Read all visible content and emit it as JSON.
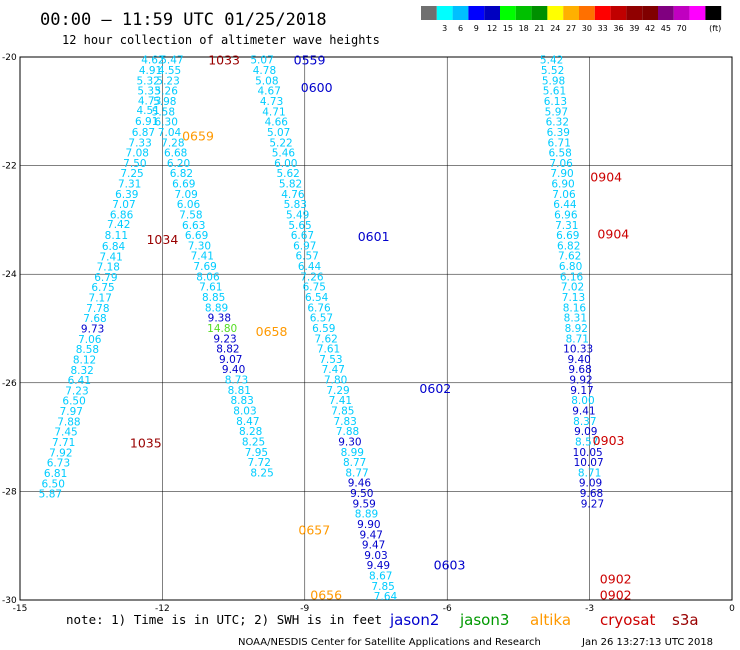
{
  "header": {
    "title": "00:00 – 11:59 UTC 01/25/2018",
    "subtitle": "12 hour collection of altimeter wave heights"
  },
  "colorbar": {
    "unit": "(ft)",
    "colors": [
      "#707070",
      "#00ffff",
      "#00c0ff",
      "#0000ff",
      "#0000c0",
      "#00ff00",
      "#00c000",
      "#009000",
      "#ffff00",
      "#ffb000",
      "#ff7000",
      "#ff0000",
      "#c00000",
      "#900000",
      "#800000",
      "#800080",
      "#c000c0",
      "#ff00ff",
      "#000000"
    ],
    "labels": [
      "3",
      "6",
      "9",
      "12",
      "15",
      "18",
      "21",
      "24",
      "27",
      "30",
      "33",
      "36",
      "39",
      "42",
      "45",
      "70"
    ]
  },
  "legend": {
    "note": "note:  1) Time is in UTC;  2) SWH is in feet",
    "satellites": [
      {
        "name": "jason2",
        "color": "#0000cc"
      },
      {
        "name": "jason3",
        "color": "#009900"
      },
      {
        "name": "altika",
        "color": "#ff9900"
      },
      {
        "name": "cryosat",
        "color": "#cc0000"
      },
      {
        "name": "s3a",
        "color": "#990000"
      }
    ]
  },
  "footer": {
    "credit": "NOAA/NESDIS Center for Satellite Applications and Research",
    "timestamp": "Jan 26 13:27:13 UTC 2018"
  },
  "chart_data": {
    "type": "scatter",
    "xlim": [
      -15,
      0
    ],
    "ylim": [
      -30,
      -20
    ],
    "x_ticks": [
      -15,
      -12,
      -9,
      -6,
      -3,
      0
    ],
    "y_ticks": [
      -20,
      -22,
      -24,
      -26,
      -28,
      -30
    ],
    "grid": true,
    "value_colors": {
      "cyan": "#00ccff",
      "navy": "#0000cc",
      "green": "#55dd22"
    },
    "tracks": [
      {
        "labels": [
          "4.62",
          "4.91",
          "5.32",
          "5.33",
          "4.73",
          "4.51",
          "6.91",
          "6.87",
          "7.33",
          "7.08",
          "7.50",
          "7.25",
          "7.31",
          "6.39",
          "7.07",
          "6.86",
          "7.42",
          "8.11",
          "6.84",
          "7.41",
          "7.18",
          "6.79",
          "6.75",
          "7.17",
          "7.78",
          "7.68",
          "9.73",
          "7.06",
          "8.58",
          "8.12",
          "8.32",
          "6.41",
          "7.23",
          "6.50",
          "7.97",
          "7.88",
          "7.45",
          "7.71",
          "7.92",
          "6.73",
          "6.81",
          "6.50",
          "5.87"
        ],
        "x": [
          -12.2,
          -12.25,
          -12.3,
          -12.28,
          -12.27,
          -12.3,
          -12.33,
          -12.4,
          -12.47,
          -12.53,
          -12.58,
          -12.64,
          -12.69,
          -12.75,
          -12.81,
          -12.86,
          -12.92,
          -12.97,
          -13.03,
          -13.08,
          -13.14,
          -13.19,
          -13.25,
          -13.31,
          -13.36,
          -13.42,
          -13.47,
          -13.53,
          -13.58,
          -13.64,
          -13.69,
          -13.75,
          -13.8,
          -13.86,
          -13.92,
          -13.97,
          -14.03,
          -14.08,
          -14.14,
          -14.19,
          -14.25,
          -14.3,
          -14.36
        ],
        "y": [
          -20.05,
          -20.24,
          -20.43,
          -20.62,
          -20.8,
          -20.98,
          -21.18,
          -21.38,
          -21.57,
          -21.76,
          -21.95,
          -22.14,
          -22.33,
          -22.52,
          -22.71,
          -22.9,
          -23.08,
          -23.28,
          -23.48,
          -23.67,
          -23.86,
          -24.05,
          -24.24,
          -24.43,
          -24.62,
          -24.81,
          -25.0,
          -25.19,
          -25.38,
          -25.57,
          -25.76,
          -25.95,
          -26.14,
          -26.33,
          -26.52,
          -26.71,
          -26.9,
          -27.09,
          -27.28,
          -27.47,
          -27.66,
          -27.85,
          -28.04
        ],
        "colors": [
          "cyan",
          "cyan",
          "cyan",
          "cyan",
          "cyan",
          "cyan",
          "cyan",
          "cyan",
          "cyan",
          "cyan",
          "cyan",
          "cyan",
          "cyan",
          "cyan",
          "cyan",
          "cyan",
          "cyan",
          "cyan",
          "cyan",
          "cyan",
          "cyan",
          "cyan",
          "cyan",
          "cyan",
          "cyan",
          "cyan",
          "navy",
          "cyan",
          "cyan",
          "cyan",
          "cyan",
          "cyan",
          "cyan",
          "cyan",
          "cyan",
          "cyan",
          "cyan",
          "cyan",
          "cyan",
          "cyan",
          "cyan",
          "cyan",
          "cyan"
        ]
      },
      {
        "labels": [
          "5.47",
          "4.55",
          "5.23",
          "5.26",
          "5.98",
          "5.58",
          "6.30",
          "7.04",
          "7.28",
          "6.68",
          "6.20",
          "6.82",
          "6.69",
          "7.09",
          "6.06",
          "7.58",
          "6.63",
          "6.69",
          "7.30",
          "7.41",
          "7.69",
          "8.06",
          "7.61",
          "8.85",
          "8.89",
          "9.38",
          "14.80",
          "9.23",
          "8.82",
          "9.07",
          "9.40",
          "8.73",
          "8.81",
          "8.83",
          "8.03",
          "8.47",
          "8.28",
          "8.25",
          "7.95",
          "7.72",
          "8.25"
        ],
        "x": [
          -11.8,
          -11.85,
          -11.88,
          -11.92,
          -11.95,
          -11.98,
          -11.92,
          -11.85,
          -11.78,
          -11.72,
          -11.66,
          -11.6,
          -11.55,
          -11.5,
          -11.45,
          -11.4,
          -11.34,
          -11.28,
          -11.22,
          -11.16,
          -11.1,
          -11.04,
          -10.98,
          -10.92,
          -10.86,
          -10.8,
          -10.74,
          -10.68,
          -10.62,
          -10.56,
          -10.5,
          -10.44,
          -10.38,
          -10.32,
          -10.26,
          -10.2,
          -10.14,
          -10.08,
          -10.02,
          -9.96,
          -9.9
        ],
        "y": [
          -20.05,
          -20.24,
          -20.43,
          -20.62,
          -20.81,
          -21.0,
          -21.19,
          -21.38,
          -21.57,
          -21.76,
          -21.95,
          -22.14,
          -22.33,
          -22.52,
          -22.71,
          -22.9,
          -23.09,
          -23.28,
          -23.47,
          -23.66,
          -23.85,
          -24.04,
          -24.23,
          -24.42,
          -24.61,
          -24.8,
          -24.99,
          -25.18,
          -25.37,
          -25.56,
          -25.75,
          -25.94,
          -26.13,
          -26.32,
          -26.51,
          -26.7,
          -26.89,
          -27.08,
          -27.27,
          -27.46,
          -27.65
        ],
        "colors": [
          "cyan",
          "cyan",
          "cyan",
          "cyan",
          "cyan",
          "cyan",
          "cyan",
          "cyan",
          "cyan",
          "cyan",
          "cyan",
          "cyan",
          "cyan",
          "cyan",
          "cyan",
          "cyan",
          "cyan",
          "cyan",
          "cyan",
          "cyan",
          "cyan",
          "cyan",
          "cyan",
          "cyan",
          "cyan",
          "navy",
          "green",
          "navy",
          "navy",
          "navy",
          "navy",
          "cyan",
          "cyan",
          "cyan",
          "cyan",
          "cyan",
          "cyan",
          "cyan",
          "cyan",
          "cyan",
          "cyan"
        ]
      },
      {
        "labels": [
          "5.07",
          "4.78",
          "5.08",
          "4.67",
          "4.73",
          "4.71",
          "4.66",
          "5.07",
          "5.22",
          "5.46",
          "6.00",
          "5.62",
          "5.82",
          "4.76",
          "5.83",
          "5.49",
          "5.65",
          "6.67",
          "6.97",
          "6.57",
          "6.44",
          "7.26",
          "6.75",
          "6.54",
          "6.76",
          "6.57",
          "6.59",
          "7.62",
          "7.61",
          "7.53",
          "7.47",
          "7.80",
          "7.29",
          "7.41",
          "7.85",
          "7.83",
          "7.88",
          "9.30",
          "8.99",
          "8.77",
          "8.77",
          "9.46",
          "9.50",
          "9.59",
          "8.89",
          "9.90",
          "9.47",
          "9.47",
          "9.03",
          "9.49",
          "8.67",
          "7.85",
          "7.64"
        ],
        "x": [
          -9.9,
          -9.85,
          -9.8,
          -9.75,
          -9.7,
          -9.65,
          -9.6,
          -9.55,
          -9.5,
          -9.45,
          -9.4,
          -9.35,
          -9.3,
          -9.25,
          -9.2,
          -9.15,
          -9.1,
          -9.05,
          -9.0,
          -8.95,
          -8.9,
          -8.85,
          -8.8,
          -8.75,
          -8.7,
          -8.65,
          -8.6,
          -8.55,
          -8.5,
          -8.45,
          -8.4,
          -8.35,
          -8.3,
          -8.25,
          -8.2,
          -8.15,
          -8.1,
          -8.05,
          -8.0,
          -7.95,
          -7.9,
          -7.85,
          -7.8,
          -7.75,
          -7.7,
          -7.65,
          -7.6,
          -7.55,
          -7.5,
          -7.45,
          -7.4,
          -7.35,
          -7.3
        ],
        "y": [
          -20.05,
          -20.24,
          -20.43,
          -20.62,
          -20.81,
          -21.0,
          -21.19,
          -21.38,
          -21.57,
          -21.76,
          -21.95,
          -22.14,
          -22.33,
          -22.52,
          -22.71,
          -22.9,
          -23.09,
          -23.28,
          -23.47,
          -23.66,
          -23.85,
          -24.04,
          -24.23,
          -24.42,
          -24.61,
          -24.8,
          -24.99,
          -25.18,
          -25.37,
          -25.56,
          -25.75,
          -25.94,
          -26.13,
          -26.32,
          -26.51,
          -26.7,
          -26.89,
          -27.08,
          -27.27,
          -27.46,
          -27.65,
          -27.84,
          -28.03,
          -28.22,
          -28.41,
          -28.6,
          -28.79,
          -28.98,
          -29.17,
          -29.36,
          -29.55,
          -29.74,
          -29.93
        ],
        "colors": [
          "cyan",
          "cyan",
          "cyan",
          "cyan",
          "cyan",
          "cyan",
          "cyan",
          "cyan",
          "cyan",
          "cyan",
          "cyan",
          "cyan",
          "cyan",
          "cyan",
          "cyan",
          "cyan",
          "cyan",
          "cyan",
          "cyan",
          "cyan",
          "cyan",
          "cyan",
          "cyan",
          "cyan",
          "cyan",
          "cyan",
          "cyan",
          "cyan",
          "cyan",
          "cyan",
          "cyan",
          "cyan",
          "cyan",
          "cyan",
          "cyan",
          "cyan",
          "cyan",
          "navy",
          "cyan",
          "cyan",
          "cyan",
          "navy",
          "navy",
          "navy",
          "cyan",
          "navy",
          "navy",
          "navy",
          "navy",
          "navy",
          "cyan",
          "cyan",
          "cyan"
        ]
      },
      {
        "labels": [
          "5.42",
          "5.52",
          "5.98",
          "5.61",
          "6.13",
          "5.97",
          "6.32",
          "6.39",
          "6.71",
          "6.58",
          "7.06",
          "7.90",
          "6.90",
          "7.06",
          "6.44",
          "6.96",
          "7.31",
          "6.69",
          "6.82",
          "7.62",
          "6.80",
          "6.16",
          "7.02",
          "7.13",
          "8.16",
          "8.31",
          "8.92",
          "8.71",
          "10.33",
          "9.40",
          "9.68",
          "9.92",
          "9.17",
          "8.00",
          "9.41",
          "8.37",
          "9.09",
          "8.57",
          "10.05",
          "10.07",
          "8.71",
          "9.09",
          "9.68",
          "9.27"
        ],
        "x": [
          -3.8,
          -3.78,
          -3.76,
          -3.74,
          -3.72,
          -3.7,
          -3.68,
          -3.66,
          -3.64,
          -3.62,
          -3.6,
          -3.58,
          -3.56,
          -3.54,
          -3.52,
          -3.5,
          -3.48,
          -3.46,
          -3.44,
          -3.42,
          -3.4,
          -3.38,
          -3.36,
          -3.34,
          -3.32,
          -3.3,
          -3.28,
          -3.26,
          -3.24,
          -3.22,
          -3.2,
          -3.18,
          -3.16,
          -3.14,
          -3.12,
          -3.1,
          -3.08,
          -3.06,
          -3.04,
          -3.02,
          -3.0,
          -2.98,
          -2.96,
          -2.94
        ],
        "y": [
          -20.05,
          -20.24,
          -20.43,
          -20.62,
          -20.81,
          -21.0,
          -21.19,
          -21.38,
          -21.57,
          -21.76,
          -21.95,
          -22.14,
          -22.33,
          -22.52,
          -22.71,
          -22.9,
          -23.09,
          -23.28,
          -23.47,
          -23.66,
          -23.85,
          -24.04,
          -24.23,
          -24.42,
          -24.61,
          -24.8,
          -24.99,
          -25.18,
          -25.37,
          -25.56,
          -25.75,
          -25.94,
          -26.13,
          -26.32,
          -26.51,
          -26.7,
          -26.89,
          -27.08,
          -27.27,
          -27.46,
          -27.65,
          -27.84,
          -28.03,
          -28.22
        ],
        "colors": [
          "cyan",
          "cyan",
          "cyan",
          "cyan",
          "cyan",
          "cyan",
          "cyan",
          "cyan",
          "cyan",
          "cyan",
          "cyan",
          "cyan",
          "cyan",
          "cyan",
          "cyan",
          "cyan",
          "cyan",
          "cyan",
          "cyan",
          "cyan",
          "cyan",
          "cyan",
          "cyan",
          "cyan",
          "cyan",
          "cyan",
          "cyan",
          "cyan",
          "navy",
          "navy",
          "navy",
          "navy",
          "navy",
          "cyan",
          "navy",
          "cyan",
          "navy",
          "cyan",
          "navy",
          "navy",
          "cyan",
          "navy",
          "navy",
          "navy"
        ]
      }
    ],
    "time_labels": [
      {
        "text": "1033",
        "x": -10.7,
        "y": -20.05,
        "sat": "s3a"
      },
      {
        "text": "0559",
        "x": -8.9,
        "y": -20.05,
        "sat": "jason2"
      },
      {
        "text": "0600",
        "x": -8.75,
        "y": -20.55,
        "sat": "jason2"
      },
      {
        "text": "0659",
        "x": -11.25,
        "y": -21.45,
        "sat": "altika"
      },
      {
        "text": "0904",
        "x": -2.65,
        "y": -22.2,
        "sat": "cryosat"
      },
      {
        "text": "1034",
        "x": -12.0,
        "y": -23.35,
        "sat": "s3a"
      },
      {
        "text": "0601",
        "x": -7.55,
        "y": -23.3,
        "sat": "jason2"
      },
      {
        "text": "0904",
        "x": -2.5,
        "y": -23.25,
        "sat": "cryosat"
      },
      {
        "text": "0658",
        "x": -9.7,
        "y": -25.05,
        "sat": "altika"
      },
      {
        "text": "0602",
        "x": -6.25,
        "y": -26.1,
        "sat": "jason2"
      },
      {
        "text": "1035",
        "x": -12.35,
        "y": -27.1,
        "sat": "s3a"
      },
      {
        "text": "0903",
        "x": -2.6,
        "y": -27.05,
        "sat": "cryosat"
      },
      {
        "text": "0657",
        "x": -8.8,
        "y": -28.7,
        "sat": "altika"
      },
      {
        "text": "0603",
        "x": -5.95,
        "y": -29.35,
        "sat": "jason2"
      },
      {
        "text": "0902",
        "x": -2.45,
        "y": -29.6,
        "sat": "cryosat"
      },
      {
        "text": "0656",
        "x": -8.55,
        "y": -29.9,
        "sat": "altika"
      },
      {
        "text": "0902",
        "x": -2.45,
        "y": -29.9,
        "sat": "cryosat"
      }
    ]
  }
}
